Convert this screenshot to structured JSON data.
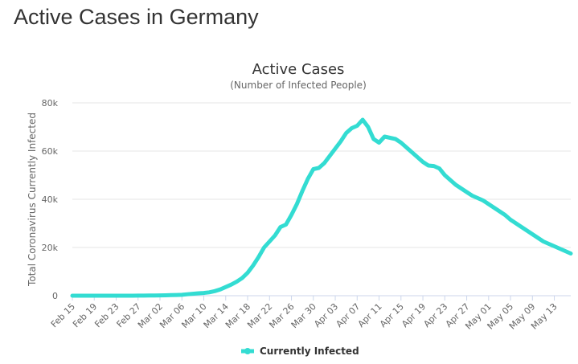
{
  "page": {
    "heading": "Active Cases in Germany"
  },
  "colors": {
    "series": "#33dcd2",
    "grid": "#e6e6e6",
    "text": "#333333",
    "muted": "#666666"
  },
  "chart_data": {
    "type": "line",
    "title": "Active Cases",
    "subtitle": "(Number of Infected People)",
    "xlabel": "",
    "ylabel": "Total Coronavirus Currently Infected",
    "ylim": [
      0,
      80000
    ],
    "yticks": [
      0,
      20000,
      40000,
      60000,
      80000
    ],
    "ytick_labels": [
      "0",
      "20k",
      "40k",
      "60k",
      "80k"
    ],
    "x_tick_labels": [
      "Feb 15",
      "Feb 19",
      "Feb 23",
      "Feb 27",
      "Mar 02",
      "Mar 06",
      "Mar 10",
      "Mar 14",
      "Mar 18",
      "Mar 22",
      "Mar 26",
      "Mar 30",
      "Apr 03",
      "Apr 07",
      "Apr 11",
      "Apr 15",
      "Apr 19",
      "Apr 23",
      "Apr 27",
      "May 01",
      "May 05",
      "May 09",
      "May 13"
    ],
    "x_tick_every": 4,
    "x_start": "Feb 15",
    "x_end": "May 14",
    "grid": true,
    "legend": "bottom-center",
    "series": [
      {
        "name": "Currently Infected",
        "color": "#33dcd2",
        "values": [
          16,
          16,
          16,
          16,
          16,
          16,
          16,
          16,
          16,
          16,
          16,
          16,
          30,
          45,
          60,
          100,
          130,
          170,
          220,
          290,
          380,
          600,
          800,
          1000,
          1150,
          1400,
          1900,
          2600,
          3600,
          4600,
          5800,
          7300,
          9500,
          12500,
          16000,
          20000,
          22500,
          25000,
          28500,
          29500,
          33500,
          38000,
          43500,
          48500,
          52500,
          53000,
          55000,
          58000,
          61000,
          64000,
          67500,
          69500,
          70500,
          73000,
          70000,
          65000,
          63500,
          66000,
          65500,
          65000,
          63500,
          61500,
          59500,
          57500,
          55500,
          54000,
          53800,
          52800,
          50000,
          48000,
          46000,
          44500,
          43000,
          41500,
          40500,
          39500,
          38000,
          36500,
          35000,
          33500,
          31500,
          30000,
          28500,
          27000,
          25500,
          24000,
          22500,
          21500,
          20500,
          19500,
          18500,
          17500
        ]
      }
    ]
  }
}
